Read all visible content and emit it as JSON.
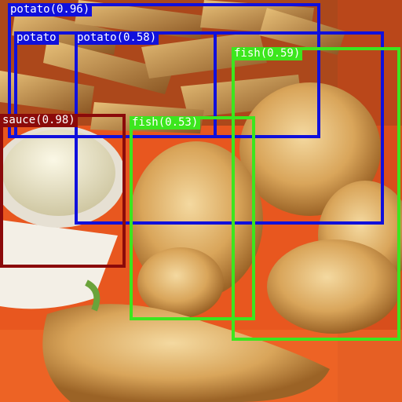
{
  "image": {
    "subject": "fried fish and potato wedges with a ramekin of tartar sauce on an orange plate",
    "colors": {
      "plate": "#e8571f",
      "batter": "#d9a55a",
      "sauce": "#ece6c8",
      "ramekin": "#f3efe6"
    }
  },
  "detections": [
    {
      "label": "potato(0.96)",
      "class": "potato",
      "score": 0.96,
      "color": "#1010dc"
    },
    {
      "label": "potato",
      "class": "potato",
      "score": null,
      "color": "#1010dc"
    },
    {
      "label": "potato(0.58)",
      "class": "potato",
      "score": 0.58,
      "color": "#1010dc"
    },
    {
      "label": "fish(0.59)",
      "class": "fish",
      "score": 0.59,
      "color": "#3ce61e"
    },
    {
      "label": "sauce(0.98)",
      "class": "sauce",
      "score": 0.98,
      "color": "#8b0a0a"
    },
    {
      "label": "fish(0.53)",
      "class": "fish",
      "score": 0.53,
      "color": "#3ce61e"
    }
  ]
}
